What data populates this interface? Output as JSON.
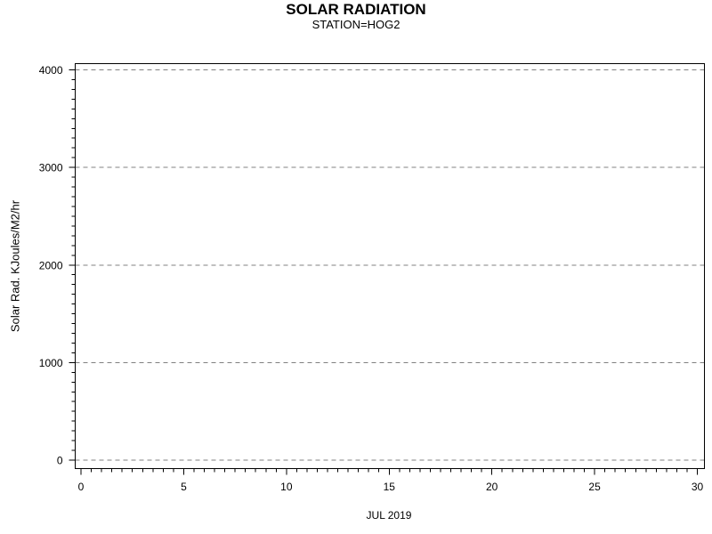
{
  "chart_data": {
    "type": "line",
    "title": "SOLAR RADIATION",
    "subtitle": "STATION=HOG2",
    "xlabel": "JUL 2019",
    "ylabel": "Solar Rad. KJoules/M2/hr",
    "xlim": [
      0,
      30
    ],
    "ylim": [
      0,
      4000
    ],
    "x_major_ticks": [
      0,
      5,
      10,
      15,
      20,
      25,
      30
    ],
    "x_minor_step": 0.5,
    "y_major_ticks": [
      0,
      1000,
      2000,
      3000,
      4000
    ],
    "y_minor_step": 100,
    "grid": {
      "horizontal": true,
      "vertical": false,
      "style": "dashed"
    },
    "legend_position": "none",
    "series": [],
    "colors": {
      "background": "#ffffff",
      "axis": "#000000",
      "text": "#000000",
      "grid": "#808080"
    }
  }
}
